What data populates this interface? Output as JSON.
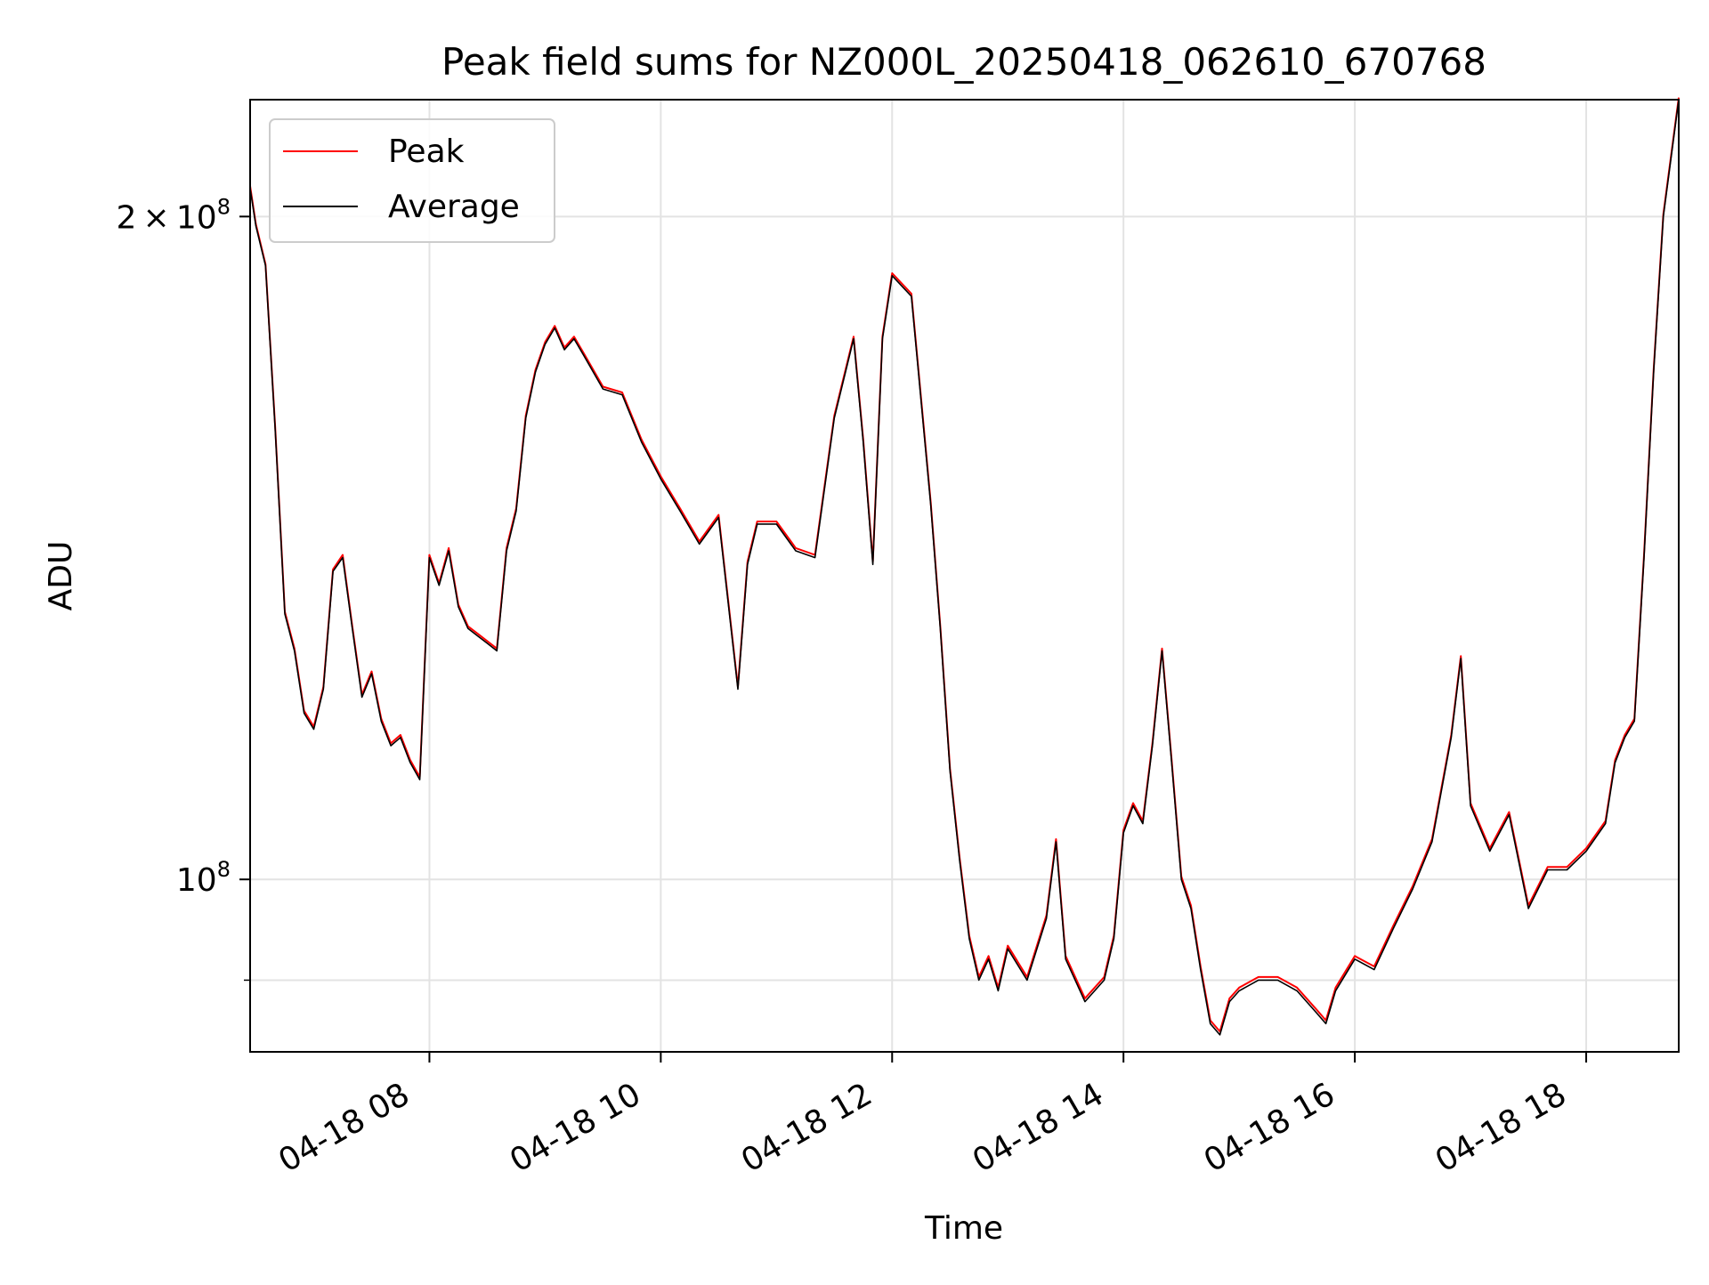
{
  "chart_data": {
    "type": "line",
    "title": "Peak field sums for NZ000L_20250418_062610_670768",
    "xlabel": "Time",
    "ylabel": "ADU",
    "y_scale": "log",
    "grid": true,
    "legend_position": "top-left",
    "x_tick_labels": [
      "04-18 08",
      "04-18 10",
      "04-18 12",
      "04-18 14",
      "04-18 16",
      "04-18 18"
    ],
    "x_tick_hours": [
      8,
      10,
      12,
      14,
      16,
      18
    ],
    "y_tick_labels": [
      {
        "value": 100000000,
        "mantissa": "",
        "exp": "8"
      },
      {
        "value": 200000000,
        "mantissa": "2",
        "exp": "8"
      }
    ],
    "y_minor_ticks": [
      90000000
    ],
    "xlim": [
      "2025-04-18 06:27",
      "2025-04-18 18:48"
    ],
    "ylim": [
      83500000,
      226000000
    ],
    "series": [
      {
        "name": "Peak",
        "color": "#ff0000"
      },
      {
        "name": "Average",
        "color": "#000000"
      }
    ],
    "x": [
      "06:27",
      "06:30",
      "06:35",
      "06:40",
      "06:45",
      "06:50",
      "06:55",
      "07:00",
      "07:05",
      "07:10",
      "07:15",
      "07:20",
      "07:25",
      "07:30",
      "07:35",
      "07:40",
      "07:45",
      "07:50",
      "07:55",
      "08:00",
      "08:05",
      "08:10",
      "08:15",
      "08:20",
      "08:25",
      "08:30",
      "08:35",
      "08:40",
      "08:45",
      "08:50",
      "08:55",
      "09:00",
      "09:05",
      "09:10",
      "09:15",
      "09:20",
      "09:30",
      "09:40",
      "09:50",
      "10:00",
      "10:10",
      "10:20",
      "10:30",
      "10:40",
      "10:45",
      "10:50",
      "11:00",
      "11:10",
      "11:20",
      "11:30",
      "11:40",
      "11:45",
      "11:50",
      "11:55",
      "12:00",
      "12:10",
      "12:20",
      "12:25",
      "12:30",
      "12:35",
      "12:40",
      "12:45",
      "12:50",
      "12:55",
      "13:00",
      "13:10",
      "13:20",
      "13:25",
      "13:30",
      "13:40",
      "13:50",
      "13:55",
      "14:00",
      "14:05",
      "14:10",
      "14:15",
      "14:20",
      "14:25",
      "14:30",
      "14:35",
      "14:40",
      "14:45",
      "14:50",
      "14:55",
      "15:00",
      "15:10",
      "15:20",
      "15:30",
      "15:40",
      "15:45",
      "15:50",
      "16:00",
      "16:10",
      "16:20",
      "16:30",
      "16:40",
      "16:50",
      "16:55",
      "17:00",
      "17:10",
      "17:20",
      "17:30",
      "17:40",
      "17:50",
      "18:00",
      "18:10",
      "18:15",
      "18:20",
      "18:25",
      "18:30",
      "18:35",
      "18:40",
      "18:48"
    ],
    "average": [
      206000000,
      198000000,
      190000000,
      160000000,
      132000000,
      127000000,
      119000000,
      117000000,
      122000000,
      138000000,
      140000000,
      130000000,
      121000000,
      124000000,
      118000000,
      115000000,
      116000000,
      113000000,
      111000000,
      140000000,
      136000000,
      141000000,
      133000000,
      130000000,
      129000000,
      128000000,
      127000000,
      141000000,
      147000000,
      162000000,
      170000000,
      175000000,
      178000000,
      174000000,
      176000000,
      173000000,
      167000000,
      166000000,
      158000000,
      152000000,
      147000000,
      142000000,
      146000000,
      122000000,
      139000000,
      145000000,
      145000000,
      141000000,
      140000000,
      162000000,
      176000000,
      158000000,
      139000000,
      176000000,
      188000000,
      184000000,
      148000000,
      130000000,
      112000000,
      102000000,
      94000000,
      90000000,
      92000000,
      89000000,
      93000000,
      90000000,
      96000000,
      104000000,
      92000000,
      88000000,
      90000000,
      94000000,
      105000000,
      108000000,
      106000000,
      115000000,
      127000000,
      113000000,
      100000000,
      97000000,
      91000000,
      86000000,
      85000000,
      88000000,
      89000000,
      90000000,
      90000000,
      89000000,
      87000000,
      86000000,
      89000000,
      92000000,
      91000000,
      95000000,
      99000000,
      104000000,
      116000000,
      126000000,
      108000000,
      103000000,
      107000000,
      97000000,
      101000000,
      101000000,
      103000000,
      106000000,
      113000000,
      116000000,
      118000000,
      140000000,
      170000000,
      200000000,
      226000000
    ],
    "peak": [
      206500000,
      198400000,
      190300000,
      160400000,
      132300000,
      127300000,
      119300000,
      117300000,
      122300000,
      138300000,
      140400000,
      130300000,
      121300000,
      124300000,
      118300000,
      115300000,
      116300000,
      113300000,
      111300000,
      140400000,
      136300000,
      141400000,
      133300000,
      130300000,
      129300000,
      128300000,
      127300000,
      141400000,
      147400000,
      162400000,
      170400000,
      175400000,
      178400000,
      174400000,
      176400000,
      173400000,
      167400000,
      166400000,
      158400000,
      152400000,
      147400000,
      142400000,
      146400000,
      122300000,
      139400000,
      145400000,
      145400000,
      141400000,
      140400000,
      162400000,
      176400000,
      158400000,
      139400000,
      176400000,
      188500000,
      184500000,
      148400000,
      130300000,
      112300000,
      102300000,
      94300000,
      90300000,
      92300000,
      89300000,
      93300000,
      90300000,
      96300000,
      104300000,
      92300000,
      88300000,
      90300000,
      94300000,
      105300000,
      108300000,
      106300000,
      115300000,
      127300000,
      113300000,
      100300000,
      97300000,
      91300000,
      86300000,
      85300000,
      88300000,
      89300000,
      90300000,
      90300000,
      89300000,
      87300000,
      86300000,
      89300000,
      92300000,
      91300000,
      95300000,
      99300000,
      104300000,
      116300000,
      126300000,
      108300000,
      103300000,
      107300000,
      97300000,
      101300000,
      101300000,
      103300000,
      106300000,
      113300000,
      116300000,
      118300000,
      140400000,
      170400000,
      200500000,
      226500000
    ]
  }
}
